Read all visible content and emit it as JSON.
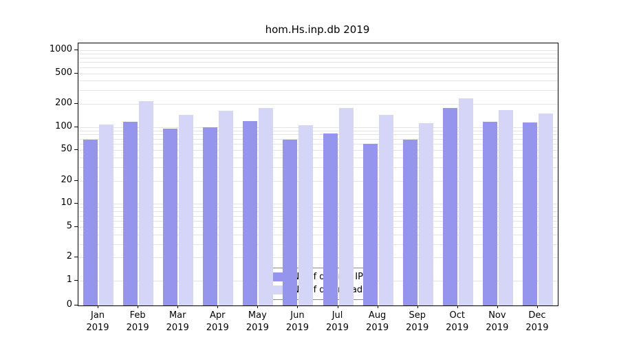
{
  "chart_data": {
    "type": "bar",
    "title": "hom.Hs.inp.db 2019",
    "year": "2019",
    "categories": [
      "Jan",
      "Feb",
      "Mar",
      "Apr",
      "May",
      "Jun",
      "Jul",
      "Aug",
      "Sep",
      "Oct",
      "Nov",
      "Dec"
    ],
    "series": [
      {
        "name": "Nb of distinct IPs",
        "color": "#9595ee",
        "values": [
          68,
          118,
          95,
          100,
          120,
          68,
          83,
          60,
          69,
          178,
          118,
          115
        ]
      },
      {
        "name": "Nb of downloads",
        "color": "#d5d5f7",
        "values": [
          108,
          218,
          145,
          163,
          178,
          106,
          178,
          145,
          112,
          235,
          165,
          150
        ]
      }
    ],
    "y_ticks": [
      0,
      1,
      2,
      5,
      10,
      20,
      50,
      100,
      200,
      500,
      1000
    ],
    "ylabel": "",
    "xlabel": "",
    "scale": "log",
    "grid": true,
    "grid_color": "#e3e3e3",
    "legend_position": "bottom-center",
    "frame_color": "#000000"
  }
}
